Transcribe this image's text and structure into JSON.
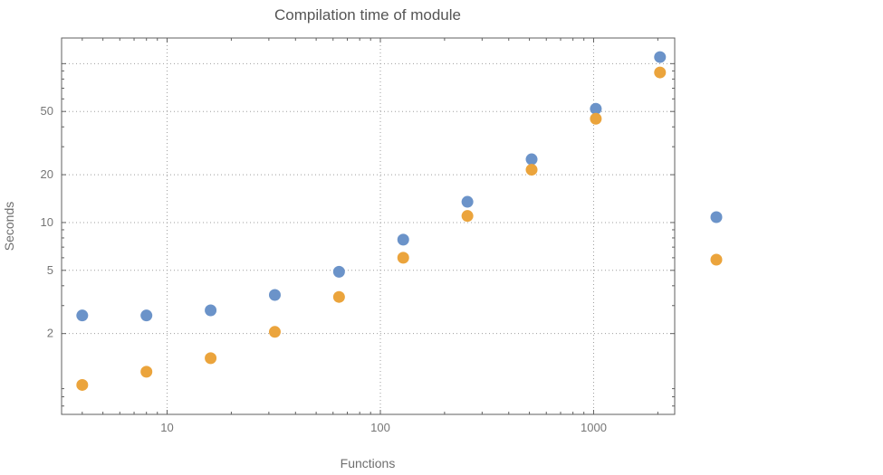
{
  "chart_data": {
    "type": "scatter",
    "title": "Compilation time of module",
    "xlabel": "Functions",
    "ylabel": "Seconds",
    "x_scale": "log",
    "y_scale": "log",
    "grid": true,
    "xlim": [
      3.2,
      2400
    ],
    "ylim": [
      0.62,
      145
    ],
    "x": [
      4,
      8,
      16,
      32,
      64,
      128,
      256,
      512,
      1024,
      2048
    ],
    "series": [
      {
        "name": "blue-series",
        "color": "#6b93c9",
        "values": [
          2.6,
          2.6,
          2.8,
          3.5,
          4.9,
          7.8,
          13.5,
          25,
          52,
          110
        ]
      },
      {
        "name": "orange-series",
        "color": "#eba43c",
        "values": [
          0.95,
          1.15,
          1.4,
          2.05,
          3.4,
          6.0,
          11.0,
          21.5,
          45,
          88
        ]
      }
    ],
    "x_ticks": [
      {
        "value": 10,
        "label": "10"
      },
      {
        "value": 100,
        "label": "100"
      },
      {
        "value": 1000,
        "label": "1000"
      }
    ],
    "y_ticks": [
      {
        "value": 2,
        "label": "2"
      },
      {
        "value": 5,
        "label": "5"
      },
      {
        "value": 10,
        "label": "10"
      },
      {
        "value": 20,
        "label": "20"
      },
      {
        "value": 50,
        "label": "50"
      }
    ],
    "x_gridlines": [
      10,
      100,
      1000
    ],
    "y_gridlines": [
      2,
      5,
      10,
      20,
      50,
      100
    ],
    "legend_position": "right",
    "legend": [
      {
        "label": "",
        "color": "#6b93c9"
      },
      {
        "label": "",
        "color": "#eba43c"
      }
    ],
    "marker_radius": 6.5
  }
}
